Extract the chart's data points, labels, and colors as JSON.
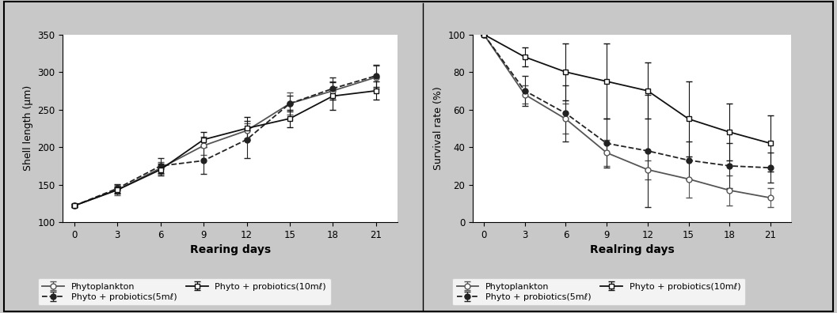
{
  "days": [
    0,
    3,
    6,
    9,
    12,
    15,
    18,
    21
  ],
  "shell_phyto": [
    122,
    143,
    172,
    202,
    222,
    258,
    275,
    293
  ],
  "shell_phyto_err": [
    2,
    7,
    8,
    12,
    10,
    15,
    12,
    15
  ],
  "shell_5ml": [
    122,
    145,
    175,
    182,
    210,
    258,
    278,
    295
  ],
  "shell_5ml_err": [
    2,
    6,
    10,
    18,
    25,
    10,
    15,
    15
  ],
  "shell_10ml": [
    122,
    143,
    170,
    210,
    225,
    238,
    268,
    275
  ],
  "shell_10ml_err": [
    2,
    5,
    8,
    10,
    15,
    12,
    18,
    12
  ],
  "surv_phyto": [
    100,
    68,
    55,
    37,
    28,
    23,
    17,
    13
  ],
  "surv_phyto_err": [
    0,
    5,
    8,
    7,
    5,
    10,
    8,
    5
  ],
  "surv_5ml": [
    100,
    70,
    58,
    42,
    38,
    33,
    30,
    29
  ],
  "surv_5ml_err": [
    0,
    8,
    15,
    13,
    30,
    10,
    12,
    8
  ],
  "surv_10ml": [
    100,
    88,
    80,
    75,
    70,
    55,
    48,
    42
  ],
  "surv_10ml_err": [
    0,
    5,
    15,
    20,
    15,
    20,
    15,
    15
  ],
  "ylabel_left": "Shell length (μm)",
  "ylabel_right": "Survival rate (%)",
  "xlabel_left": "Rearing days",
  "xlabel_right": "Realring days",
  "ylim_left": [
    100,
    350
  ],
  "ylim_right": [
    0,
    100
  ],
  "yticks_left": [
    100,
    150,
    200,
    250,
    300,
    350
  ],
  "yticks_right": [
    0,
    20,
    40,
    60,
    80,
    100
  ],
  "legend_phyto": "Phytoplankton",
  "legend_5ml": "Phyto + probiotics(5mℓ)",
  "legend_10ml": "Phyto + probiotics(10mℓ)",
  "color_phyto": "#555555",
  "color_5ml": "#222222",
  "color_10ml": "#111111",
  "bg_color": "#c8c8c8"
}
